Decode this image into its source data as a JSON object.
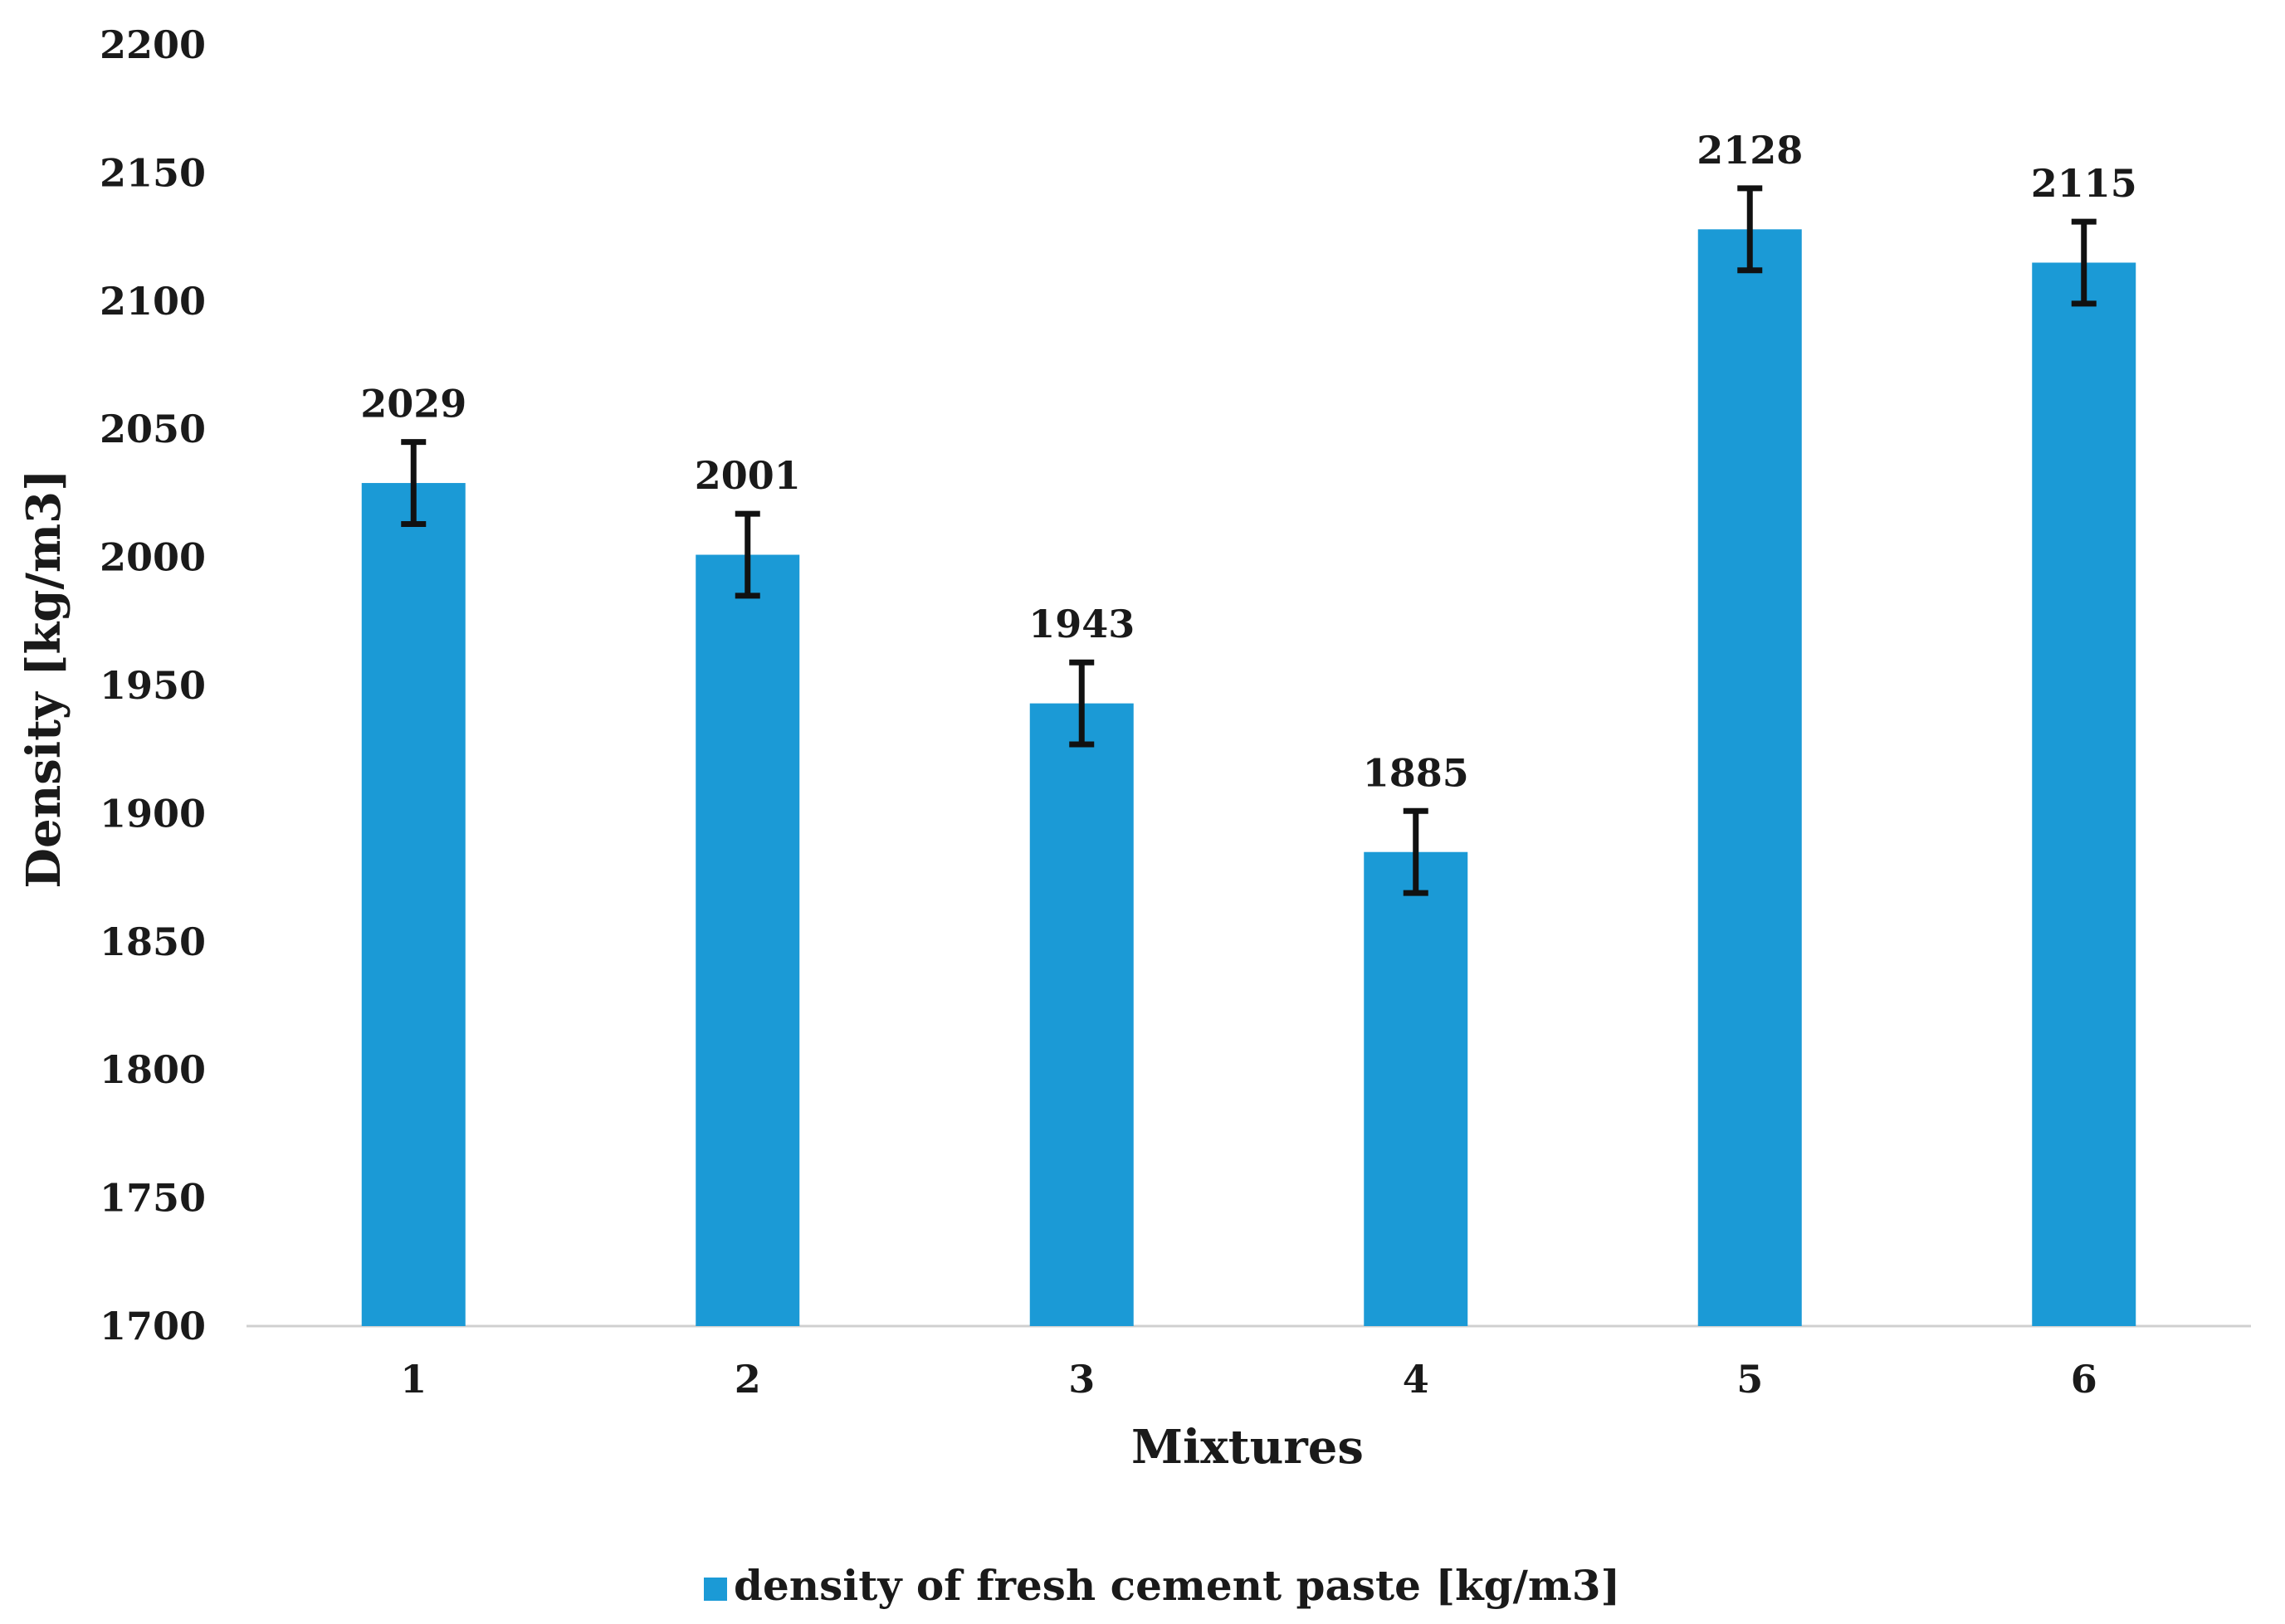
{
  "chart_data": {
    "type": "bar",
    "title": "",
    "xlabel": "Mixtures",
    "ylabel": "Density [kg/m3]",
    "ylim": [
      1700,
      2200
    ],
    "yticks": [
      1700,
      1750,
      1800,
      1850,
      1900,
      1950,
      2000,
      2050,
      2100,
      2150,
      2200
    ],
    "categories": [
      "1",
      "2",
      "3",
      "4",
      "5",
      "6"
    ],
    "series": [
      {
        "name": "density of fresh cement paste [kg/m3]",
        "values": [
          2029,
          2001,
          1943,
          1885,
          2128,
          2115
        ],
        "error": [
          16,
          16,
          16,
          16,
          16,
          16
        ],
        "color": "#1b9ad6"
      }
    ],
    "data_labels": [
      "2029",
      "2001",
      "1943",
      "1885",
      "2128",
      "2115"
    ],
    "grid": false,
    "legend_position": "bottom",
    "axis_color": "#d0d0d0",
    "error_bar_color": "#111111"
  }
}
